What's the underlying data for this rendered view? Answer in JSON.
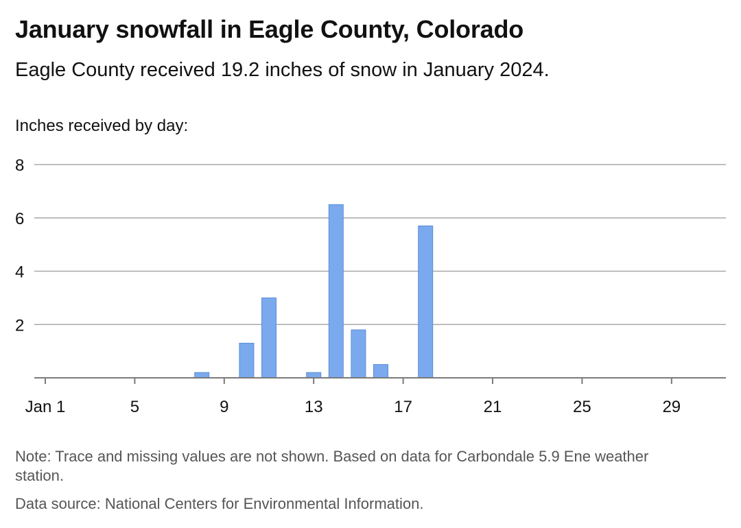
{
  "chart_data": {
    "type": "bar",
    "title": "January snowfall in Eagle County, Colorado",
    "subtitle": "Eagle County received 19.2 inches of snow in January 2024.",
    "ylabel": "Inches received by day:",
    "xlabel": "",
    "x_ticks": [
      {
        "day": 1,
        "label": "Jan 1"
      },
      {
        "day": 5,
        "label": "5"
      },
      {
        "day": 9,
        "label": "9"
      },
      {
        "day": 13,
        "label": "13"
      },
      {
        "day": 17,
        "label": "17"
      },
      {
        "day": 21,
        "label": "21"
      },
      {
        "day": 25,
        "label": "25"
      },
      {
        "day": 29,
        "label": "29"
      }
    ],
    "y_ticks": [
      2,
      4,
      6,
      8
    ],
    "ylim": [
      0,
      8
    ],
    "xlim": [
      1,
      31
    ],
    "grid": true,
    "bar_color": "#7aa9ee",
    "bar_stroke": "#5b8ed6",
    "points": [
      {
        "day": 8,
        "value": 0.2
      },
      {
        "day": 10,
        "value": 1.3
      },
      {
        "day": 11,
        "value": 3.0
      },
      {
        "day": 13,
        "value": 0.2
      },
      {
        "day": 14,
        "value": 6.5
      },
      {
        "day": 15,
        "value": 1.8
      },
      {
        "day": 16,
        "value": 0.5
      },
      {
        "day": 18,
        "value": 5.7
      }
    ]
  },
  "footer": {
    "note": "Note: Trace and missing values are not shown. Based on data for Carbondale 5.9 Ene weather station.",
    "source": "Data source: National Centers for Environmental Information."
  }
}
